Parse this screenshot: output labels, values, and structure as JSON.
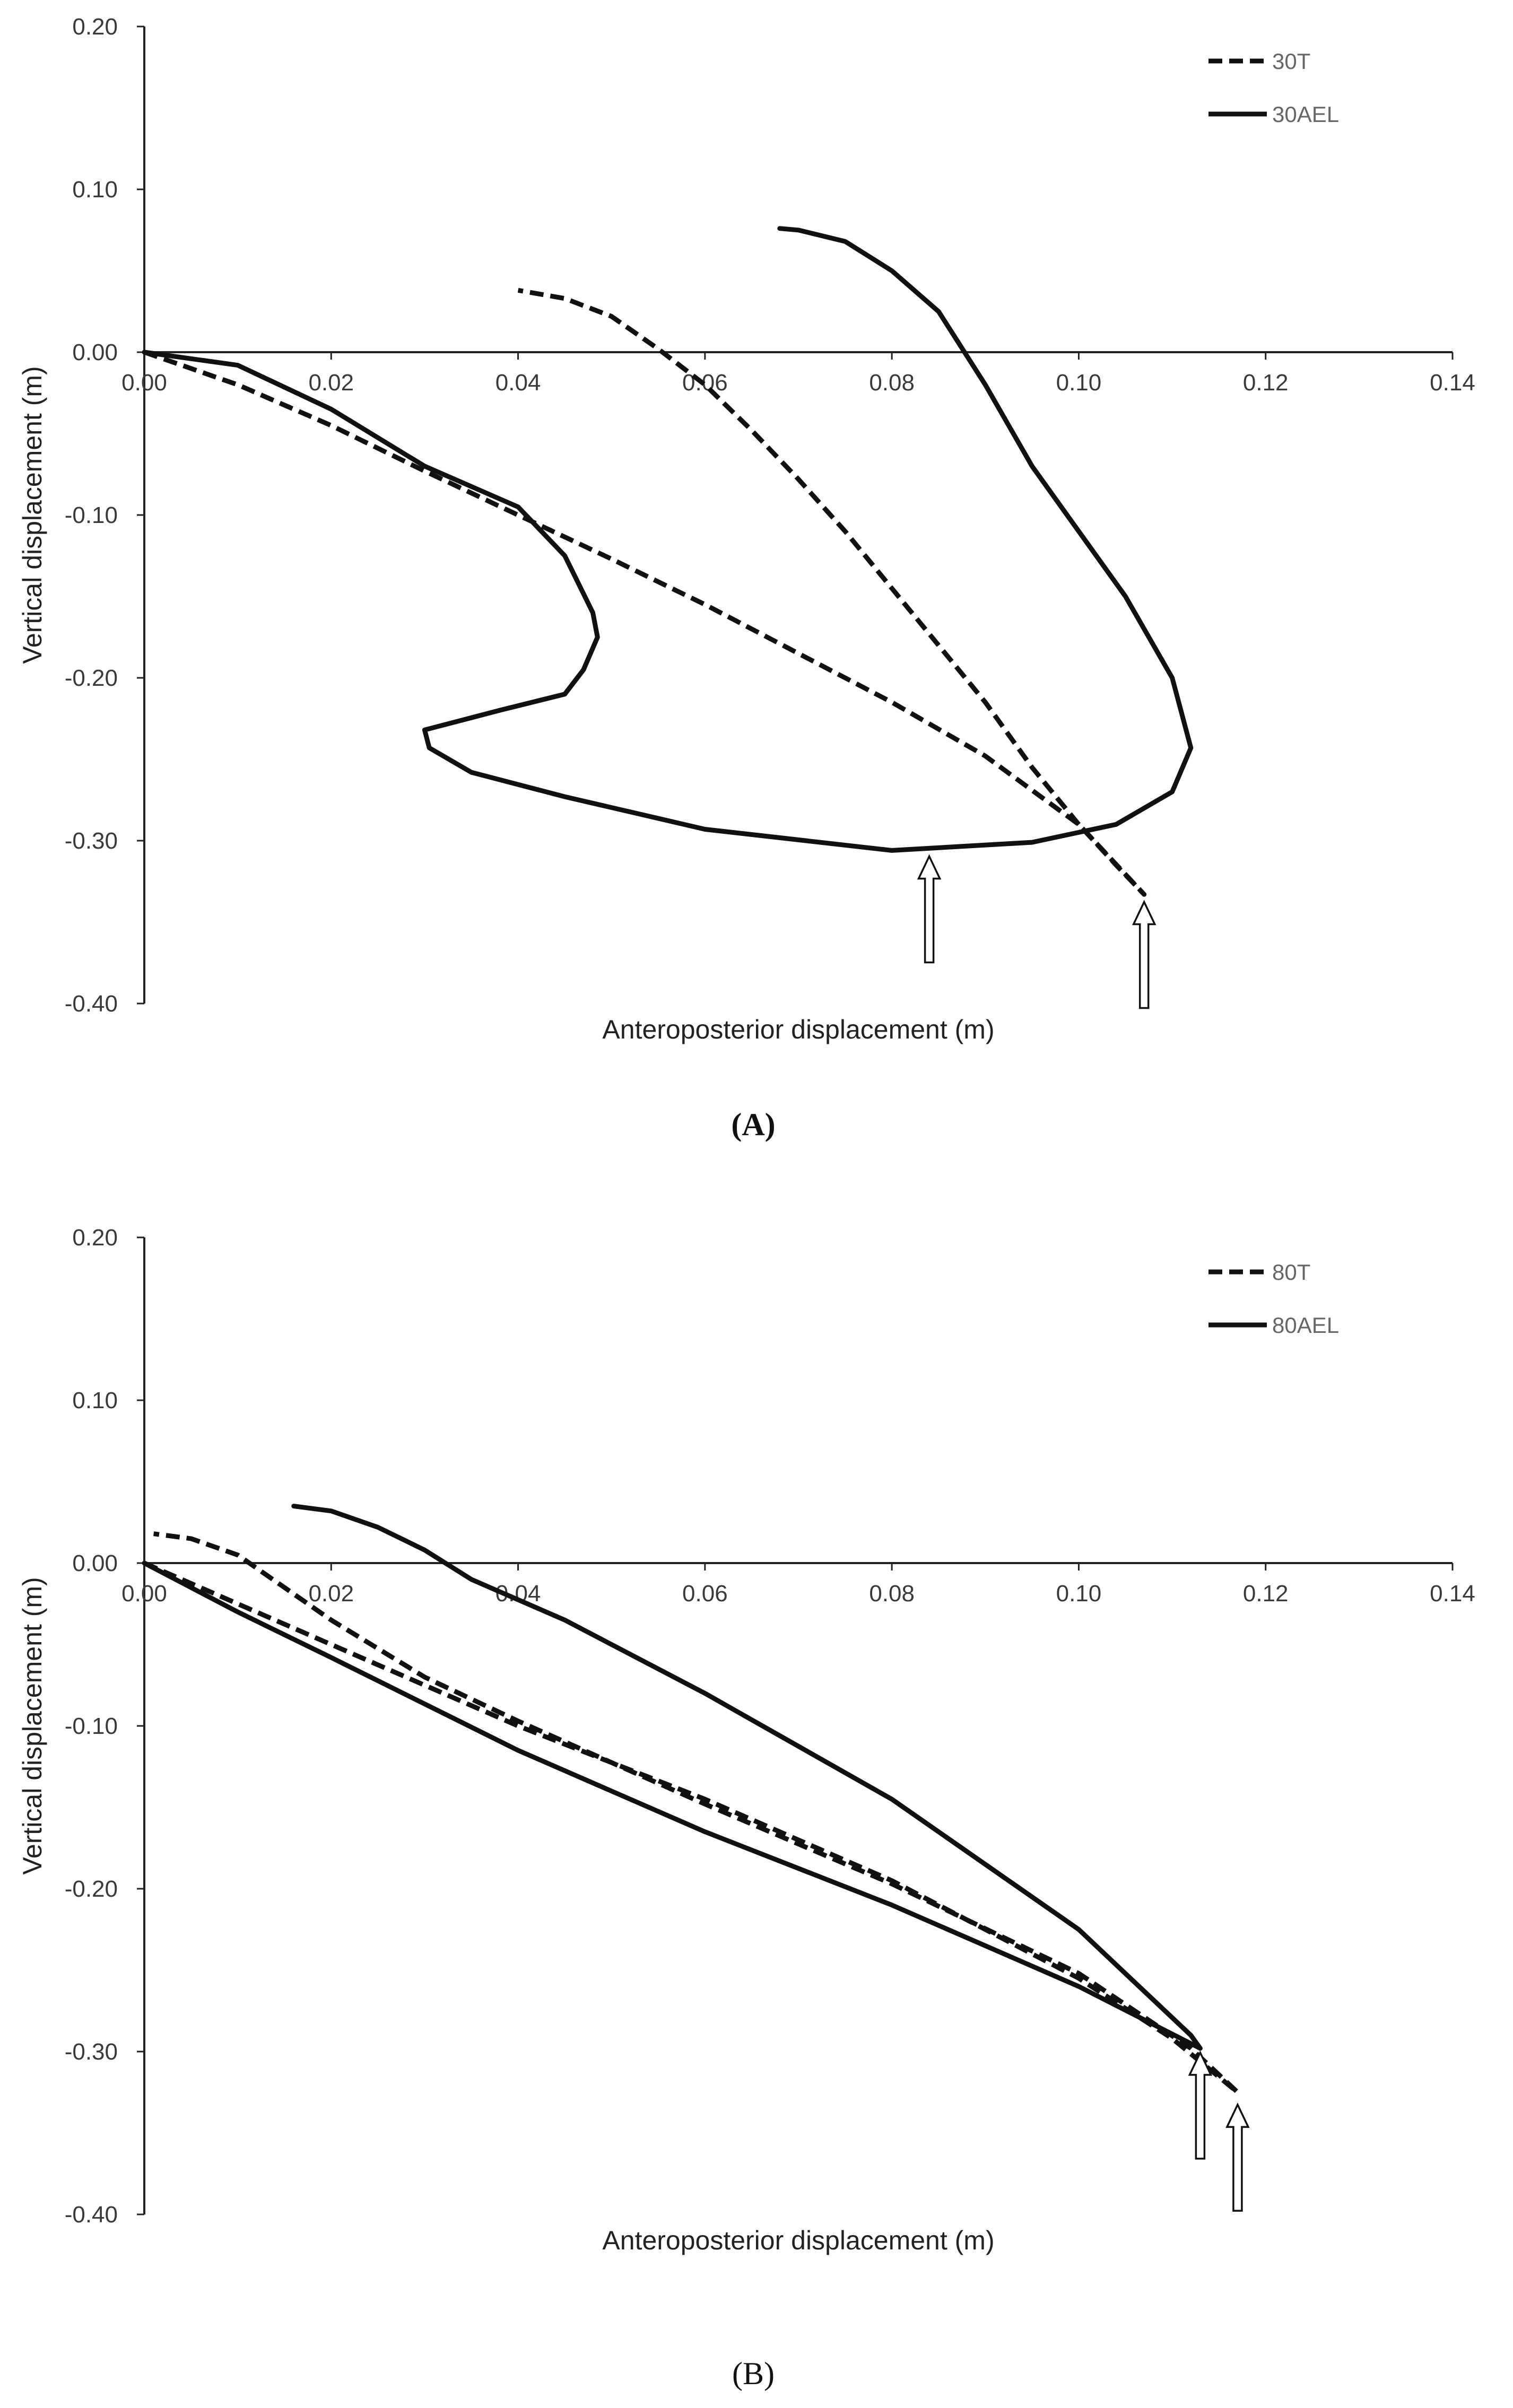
{
  "chart_data": [
    {
      "panel": "A",
      "type": "line",
      "caption": "(A)",
      "caption_bold": true,
      "xlabel": "Anteroposterior displacement (m)",
      "ylabel": "Vertical displacement (m)",
      "xlim": [
        0,
        0.14
      ],
      "ylim": [
        -0.4,
        0.2
      ],
      "x_ticks": [
        "0.00",
        "0.02",
        "0.04",
        "0.06",
        "0.08",
        "0.10",
        "0.12",
        "0.14"
      ],
      "y_ticks": [
        "0.20",
        "0.10",
        "0.00",
        "-0.10",
        "-0.20",
        "-0.30",
        "-0.40"
      ],
      "grid": false,
      "legend_position": "top-right",
      "series": [
        {
          "name": "30T",
          "style": "dashed",
          "color": "#111111",
          "points": [
            [
              0,
              0
            ],
            [
              0.01,
              -0.02
            ],
            [
              0.02,
              -0.045
            ],
            [
              0.03,
              -0.073
            ],
            [
              0.04,
              -0.1
            ],
            [
              0.05,
              -0.127
            ],
            [
              0.06,
              -0.155
            ],
            [
              0.07,
              -0.185
            ],
            [
              0.08,
              -0.215
            ],
            [
              0.09,
              -0.248
            ],
            [
              0.1,
              -0.29
            ],
            [
              0.107,
              -0.333
            ],
            [
              0.104,
              -0.315
            ],
            [
              0.1,
              -0.29
            ],
            [
              0.095,
              -0.255
            ],
            [
              0.09,
              -0.215
            ],
            [
              0.085,
              -0.18
            ],
            [
              0.08,
              -0.145
            ],
            [
              0.075,
              -0.11
            ],
            [
              0.07,
              -0.078
            ],
            [
              0.065,
              -0.048
            ],
            [
              0.06,
              -0.02
            ],
            [
              0.055,
              0.002
            ],
            [
              0.05,
              0.022
            ],
            [
              0.045,
              0.033
            ],
            [
              0.04,
              0.038
            ]
          ]
        },
        {
          "name": "30AEL",
          "style": "solid",
          "color": "#111111",
          "points": [
            [
              0,
              0
            ],
            [
              0.01,
              -0.008
            ],
            [
              0.02,
              -0.035
            ],
            [
              0.03,
              -0.07
            ],
            [
              0.04,
              -0.095
            ],
            [
              0.045,
              -0.125
            ],
            [
              0.048,
              -0.16
            ],
            [
              0.0485,
              -0.175
            ],
            [
              0.047,
              -0.195
            ],
            [
              0.045,
              -0.21
            ],
            [
              0.038,
              -0.22
            ],
            [
              0.03,
              -0.232
            ],
            [
              0.0305,
              -0.243
            ],
            [
              0.035,
              -0.258
            ],
            [
              0.045,
              -0.273
            ],
            [
              0.06,
              -0.293
            ],
            [
              0.08,
              -0.306
            ],
            [
              0.095,
              -0.301
            ],
            [
              0.104,
              -0.29
            ],
            [
              0.11,
              -0.27
            ],
            [
              0.112,
              -0.243
            ],
            [
              0.11,
              -0.2
            ],
            [
              0.105,
              -0.15
            ],
            [
              0.1,
              -0.11
            ],
            [
              0.095,
              -0.07
            ],
            [
              0.09,
              -0.02
            ],
            [
              0.085,
              0.025
            ],
            [
              0.08,
              0.05
            ],
            [
              0.075,
              0.068
            ],
            [
              0.07,
              0.075
            ],
            [
              0.068,
              0.076
            ]
          ]
        }
      ],
      "arrows": [
        {
          "x": 0.084,
          "y": -0.307
        },
        {
          "x": 0.107,
          "y": -0.335
        }
      ]
    },
    {
      "panel": "B",
      "type": "line",
      "caption": "(B)",
      "caption_bold": false,
      "xlabel": "Anteroposterior displacement (m)",
      "ylabel": "Vertical displacement (m)",
      "xlim": [
        0,
        0.14
      ],
      "ylim": [
        -0.4,
        0.2
      ],
      "x_ticks": [
        "0.00",
        "0.02",
        "0.04",
        "0.06",
        "0.08",
        "0.10",
        "0.12",
        "0.14"
      ],
      "y_ticks": [
        "0.20",
        "0.10",
        "0.00",
        "-0.10",
        "-0.20",
        "-0.30",
        "-0.40"
      ],
      "grid": false,
      "legend_position": "top-right",
      "series": [
        {
          "name": "80T",
          "style": "dashed",
          "color": "#111111",
          "points": [
            [
              0,
              0
            ],
            [
              0.01,
              -0.025
            ],
            [
              0.02,
              -0.05
            ],
            [
              0.04,
              -0.1
            ],
            [
              0.06,
              -0.145
            ],
            [
              0.08,
              -0.195
            ],
            [
              0.1,
              -0.255
            ],
            [
              0.11,
              -0.292
            ],
            [
              0.117,
              -0.325
            ],
            [
              0.112,
              -0.298
            ],
            [
              0.1,
              -0.252
            ],
            [
              0.08,
              -0.197
            ],
            [
              0.06,
              -0.148
            ],
            [
              0.04,
              -0.097
            ],
            [
              0.03,
              -0.07
            ],
            [
              0.02,
              -0.035
            ],
            [
              0.015,
              -0.015
            ],
            [
              0.01,
              0.005
            ],
            [
              0.005,
              0.015
            ],
            [
              0.001,
              0.018
            ]
          ]
        },
        {
          "name": "80AEL",
          "style": "solid",
          "color": "#111111",
          "points": [
            [
              0,
              0
            ],
            [
              0.01,
              -0.03
            ],
            [
              0.02,
              -0.058
            ],
            [
              0.04,
              -0.115
            ],
            [
              0.06,
              -0.165
            ],
            [
              0.08,
              -0.21
            ],
            [
              0.1,
              -0.26
            ],
            [
              0.113,
              -0.298
            ],
            [
              0.112,
              -0.29
            ],
            [
              0.1,
              -0.225
            ],
            [
              0.08,
              -0.145
            ],
            [
              0.06,
              -0.08
            ],
            [
              0.045,
              -0.035
            ],
            [
              0.035,
              -0.01
            ],
            [
              0.03,
              0.008
            ],
            [
              0.025,
              0.022
            ],
            [
              0.02,
              0.032
            ],
            [
              0.016,
              0.035
            ]
          ]
        }
      ],
      "arrows": [
        {
          "x": 0.113,
          "y": -0.298
        },
        {
          "x": 0.117,
          "y": -0.33
        }
      ]
    }
  ]
}
